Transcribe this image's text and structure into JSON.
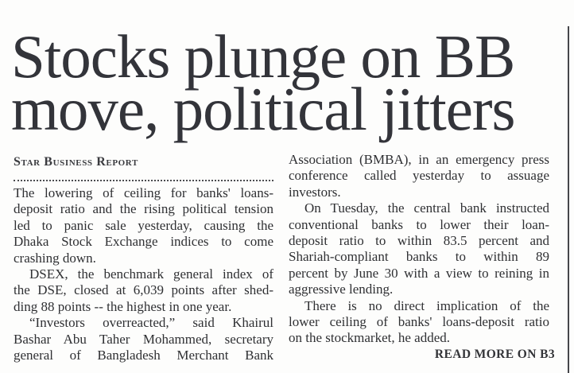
{
  "article": {
    "headline_line1": "Stocks plunge on BB",
    "headline_line2": "move, political jitters",
    "byline": "Star Business Report",
    "read_more": "READ MORE ON B3",
    "columns": {
      "left": {
        "paragraphs": [
          {
            "indent_first": false,
            "continues": false,
            "lines": [
              "The lowering of ceiling for banks' loans-",
              "deposit ratio and the rising political tension",
              "led to panic sale yesterday, causing the",
              "Dhaka Stock Exchange indices to come",
              "crashing down."
            ]
          },
          {
            "indent_first": true,
            "continues": false,
            "lines": [
              "DSEX, the benchmark general index of",
              "the DSE, closed at 6,039 points after shed-",
              "ding 88 points -- the highest in one year."
            ]
          },
          {
            "indent_first": true,
            "continues": true,
            "lines": [
              "“Investors overreacted,” said Khairul",
              "Bashar Abu Taher Mohammed, secretary",
              "general of Bangladesh Merchant Bank"
            ]
          }
        ]
      },
      "right": {
        "paragraphs": [
          {
            "indent_first": false,
            "continues": false,
            "lines": [
              "Association (BMBA), in an emergency press",
              "conference called yesterday to assuage",
              "investors."
            ]
          },
          {
            "indent_first": true,
            "continues": false,
            "lines": [
              "On Tuesday, the central bank instructed",
              "conventional banks to lower their loan-",
              "deposit ratio to within 83.5 percent and",
              "Shariah-compliant banks to within 89",
              "percent by June 30 with a view to reining in",
              "aggressive lending."
            ]
          },
          {
            "indent_first": true,
            "continues": false,
            "lines": [
              "There is no direct implication of the",
              "lower ceiling of banks' loans-deposit ratio",
              "on the stockmarket, he added."
            ]
          }
        ]
      }
    }
  },
  "colors": {
    "text": "#2f3033",
    "headline_text": "#33343a",
    "background": "#fdfdfc",
    "column_rule": "#46474b",
    "dotted_rule": "#4b4c50"
  }
}
